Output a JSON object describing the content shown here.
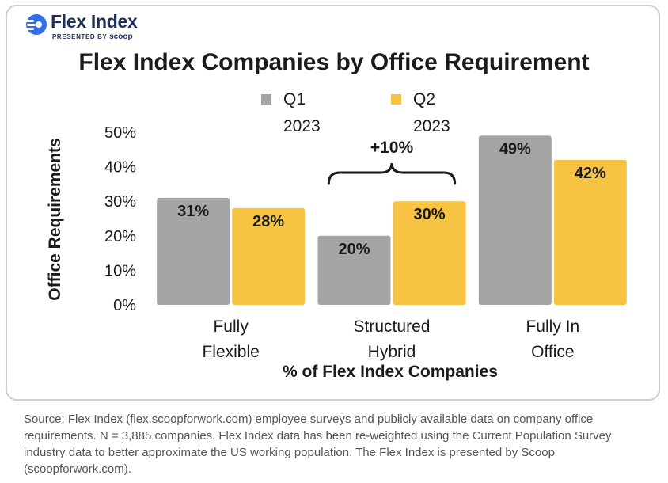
{
  "brand": {
    "name": "Flex Index",
    "presented_by": "PRESENTED BY",
    "partner": "scoop",
    "logo_icon": "flex-index-logo-icon"
  },
  "colors": {
    "q1": "#a5a5a5",
    "q2": "#f6c342",
    "text": "#1b1b1b",
    "navy": "#1f2e57",
    "accent": "#2f6ee8"
  },
  "chart_data": {
    "type": "bar",
    "title": "Flex Index Companies by Office Requirement",
    "xlabel": "% of Flex Index Companies",
    "ylabel": "Office Requirements",
    "categories": [
      [
        "Fully",
        "Flexible"
      ],
      [
        "Structured",
        "Hybrid"
      ],
      [
        "Fully In",
        "Office"
      ]
    ],
    "series": [
      {
        "name": [
          "Q1",
          "2023"
        ],
        "values": [
          31,
          20,
          49
        ],
        "labels": [
          "31%",
          "20%",
          "49%"
        ]
      },
      {
        "name": [
          "Q2",
          "2023"
        ],
        "values": [
          28,
          30,
          42
        ],
        "labels": [
          "28%",
          "30%",
          "42%"
        ]
      }
    ],
    "yticks": [
      "0%",
      "10%",
      "20%",
      "30%",
      "40%",
      "50%"
    ],
    "ylim": [
      0,
      50
    ],
    "legend_position": "top",
    "grid": false,
    "annotation": {
      "text": "+10%",
      "category_index": 1
    }
  },
  "source": "Source: Flex Index (flex.scoopforwork.com) employee surveys and publicly available data on company office requirements. N = 3,885 companies. Flex Index data has been re-weighted using the Current Population Survey industry data to better approximate the US working population. The Flex Index is presented by Scoop (scoopforwork.com)."
}
